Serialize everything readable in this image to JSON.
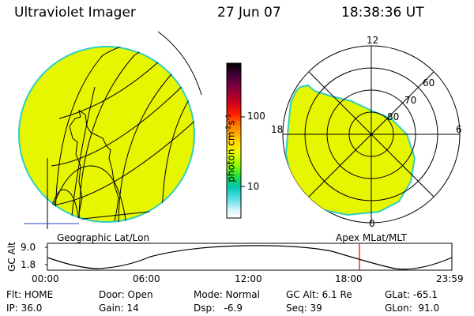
{
  "header": {
    "title": "Ultraviolet Imager",
    "date": "27 Jun 07",
    "time": "18:38:36 UT"
  },
  "colorbar": {
    "label": "photon cm",
    "label_sup1": "-2",
    "label_mid": "s",
    "label_sup2": "-1",
    "ticks": [
      "100",
      "10"
    ],
    "colors": [
      "#000000",
      "#3a0033",
      "#800040",
      "#c8001e",
      "#ff0000",
      "#ff6600",
      "#ffaa00",
      "#ffd000",
      "#e8ff00",
      "#90ff00",
      "#00e040",
      "#00c8c8",
      "#a0f0f0",
      "#ffffff"
    ]
  },
  "left_panel": {
    "label": "Geographic Lat/Lon",
    "fill_color": "#e6f500",
    "edge_color": "#30d0c0"
  },
  "right_panel": {
    "label": "Apex MLat/MLT",
    "mlt_labels": {
      "top": "12",
      "left": "18",
      "right": "6",
      "bottom": "0"
    },
    "mlat_labels": [
      "60",
      "70",
      "80"
    ],
    "fill_color": "#e6f500",
    "edge_color": "#30d0c0"
  },
  "altitude_plot": {
    "ylabel": "GC Alt",
    "yticks": [
      "9.0",
      "1.8"
    ],
    "xticks": [
      "00:00",
      "06:00",
      "12:00",
      "18:00",
      "23:59"
    ],
    "marker_time": "18:38",
    "marker_color": "#e00000"
  },
  "info": {
    "row1": {
      "flt": "Flt: HOME",
      "door": "Door: Open",
      "mode": "Mode: Normal",
      "gcalt": "GC Alt: 6.1 Re",
      "glat": "GLat: -65.1"
    },
    "row2": {
      "ip": "IP: 36.0",
      "gain": "Gain: 14",
      "dsp": "Dsp:   -6.9",
      "seq": "Seq: 39",
      "glon": "GLon:  91.0"
    }
  }
}
